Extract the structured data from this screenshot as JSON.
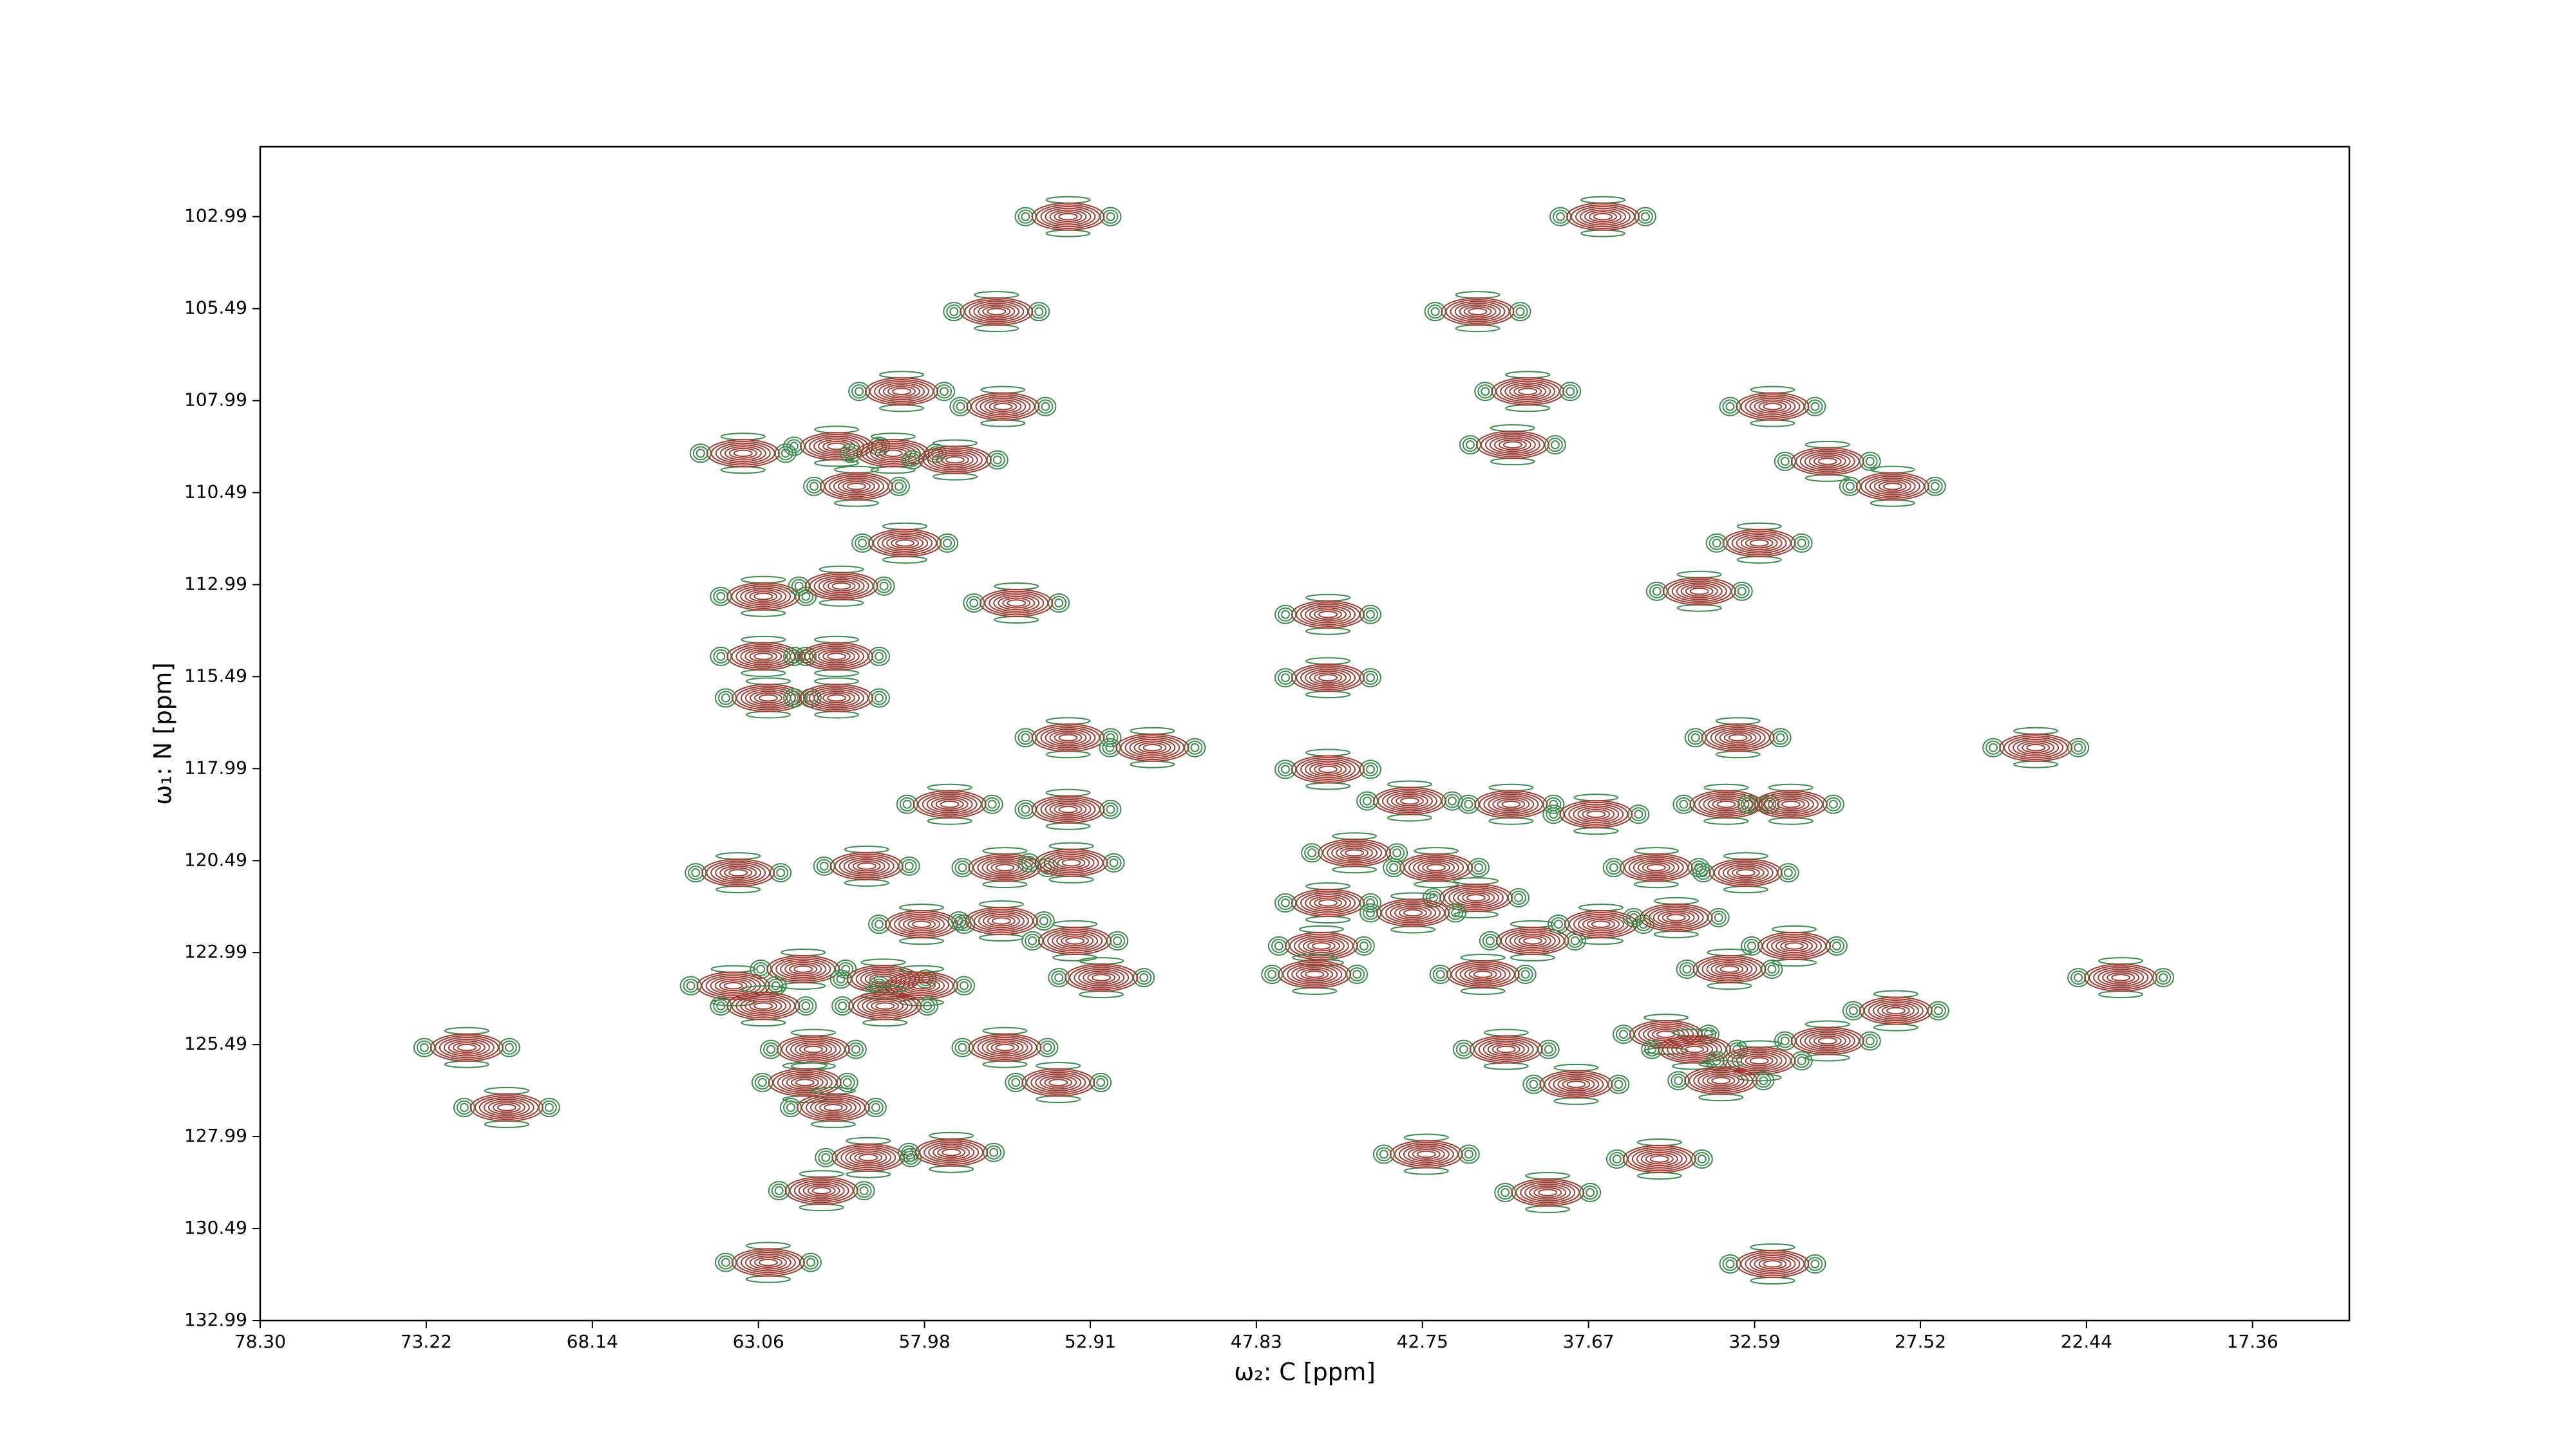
{
  "chart_data": {
    "type": "contour",
    "xlabel": "ω₂: C [ppm]",
    "ylabel": "ω₁: N [ppm]",
    "xlim": [
      78.3,
      14.4
    ],
    "ylim": [
      132.99,
      101.09
    ],
    "xticks": [
      {
        "value": 78.3,
        "label": "78.30"
      },
      {
        "value": 73.22,
        "label": "73.22"
      },
      {
        "value": 68.14,
        "label": "68.14"
      },
      {
        "value": 63.06,
        "label": "63.06"
      },
      {
        "value": 57.98,
        "label": "57.98"
      },
      {
        "value": 52.91,
        "label": "52.91"
      },
      {
        "value": 47.83,
        "label": "47.83"
      },
      {
        "value": 42.75,
        "label": "42.75"
      },
      {
        "value": 37.67,
        "label": "37.67"
      },
      {
        "value": 32.59,
        "label": "32.59"
      },
      {
        "value": 27.52,
        "label": "27.52"
      },
      {
        "value": 22.44,
        "label": "22.44"
      },
      {
        "value": 17.36,
        "label": "17.36"
      }
    ],
    "yticks": [
      102.99,
      105.49,
      107.99,
      110.49,
      112.99,
      115.49,
      117.99,
      120.49,
      122.99,
      125.49,
      127.99,
      130.49,
      132.99
    ],
    "color": "#a23b32",
    "negative_color": "#3d8c4f",
    "x": [
      53.59,
      37.23,
      55.78,
      41.06,
      58.68,
      55.58,
      39.53,
      32.04,
      63.53,
      60.67,
      58.94,
      57.05,
      39.99,
      30.36,
      28.37,
      60.06,
      58.58,
      32.45,
      62.91,
      60.52,
      55.17,
      34.28,
      45.64,
      62.91,
      60.67,
      62.76,
      60.67,
      45.64,
      53.59,
      51.01,
      45.64,
      33.1,
      23.99,
      57.21,
      53.59,
      43.14,
      40.04,
      37.44,
      33.46,
      31.48,
      63.68,
      59.75,
      55.52,
      53.49,
      44.83,
      42.33,
      35.6,
      32.86,
      58.07,
      45.64,
      41.11,
      43.04,
      55.63,
      53.38,
      39.38,
      37.29,
      34.99,
      31.38,
      45.84,
      61.69,
      63.83,
      59.24,
      58.07,
      52.57,
      46.05,
      40.9,
      33.36,
      21.39,
      62.91,
      59.19,
      28.27,
      71.98,
      61.38,
      55.52,
      40.19,
      35.3,
      34.43,
      30.36,
      32.45,
      33.62,
      61.64,
      53.89,
      38.05,
      70.76,
      60.77,
      59.7,
      57.16,
      42.63,
      35.5,
      61.13,
      38.92,
      62.76,
      32.04
    ],
    "y": [
      102.99,
      102.99,
      105.57,
      105.57,
      107.74,
      108.15,
      107.74,
      108.15,
      109.42,
      109.23,
      109.42,
      109.6,
      109.19,
      109.64,
      110.32,
      110.32,
      111.86,
      111.86,
      113.31,
      113.03,
      113.49,
      113.17,
      113.8,
      114.94,
      114.94,
      116.07,
      116.07,
      115.52,
      117.15,
      117.42,
      118.01,
      117.15,
      117.42,
      118.96,
      119.1,
      118.87,
      118.96,
      119.23,
      118.96,
      118.96,
      120.82,
      120.64,
      120.68,
      120.55,
      120.28,
      120.68,
      120.68,
      120.82,
      122.22,
      121.64,
      121.5,
      121.91,
      122.13,
      122.67,
      122.67,
      122.22,
      122.04,
      122.81,
      122.81,
      123.44,
      123.89,
      123.71,
      123.89,
      123.67,
      123.58,
      123.58,
      123.44,
      123.67,
      124.44,
      124.44,
      124.57,
      125.57,
      125.62,
      125.57,
      125.62,
      125.21,
      125.62,
      125.39,
      125.93,
      126.47,
      126.52,
      126.52,
      126.57,
      127.2,
      127.2,
      128.56,
      128.42,
      128.47,
      128.6,
      129.46,
      129.51,
      131.41,
      131.45
    ]
  }
}
